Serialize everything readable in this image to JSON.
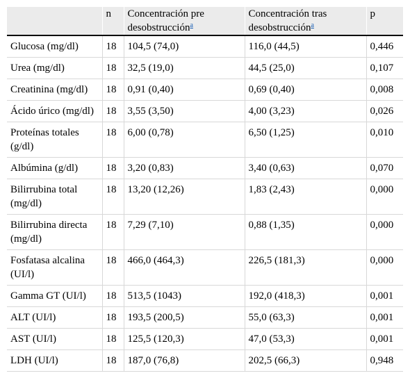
{
  "table": {
    "headers": {
      "param": "",
      "n": "n",
      "pre": "Concentración pre desobstrucción",
      "post": "Concentración tras desobstrucción",
      "footnote_mark": "a",
      "p": "p"
    },
    "rows": [
      {
        "param": "Glucosa (mg/dl)",
        "n": "18",
        "pre": "104,5 (74,0)",
        "post": "116,0 (44,5)",
        "p": "0,446"
      },
      {
        "param": "Urea (mg/dl)",
        "n": "18",
        "pre": "32,5 (19,0)",
        "post": "44,5 (25,0)",
        "p": "0,107"
      },
      {
        "param": "Creatinina (mg/dl)",
        "n": "18",
        "pre": "0,91 (0,40)",
        "post": "0,69 (0,40)",
        "p": "0,008"
      },
      {
        "param": "Ácido úrico (mg/dl)",
        "n": "18",
        "pre": "3,55 (3,50)",
        "post": "4,00 (3,23)",
        "p": "0,026"
      },
      {
        "param": "Proteínas totales (g/dl)",
        "n": "18",
        "pre": "6,00 (0,78)",
        "post": "6,50 (1,25)",
        "p": "0,010"
      },
      {
        "param": "Albúmina (g/dl)",
        "n": "18",
        "pre": "3,20 (0,83)",
        "post": "3,40 (0,63)",
        "p": "0,070"
      },
      {
        "param": "Bilirrubina total (mg/dl)",
        "n": "18",
        "pre": "13,20 (12,26)",
        "post": "1,83 (2,43)",
        "p": "0,000"
      },
      {
        "param": "Bilirrubina directa (mg/dl)",
        "n": "18",
        "pre": "7,29 (7,10)",
        "post": "0,88 (1,35)",
        "p": "0,000"
      },
      {
        "param": "Fosfatasa alcalina (UI/l)",
        "n": "18",
        "pre": "466,0 (464,3)",
        "post": "226,5 (181,3)",
        "p": "0,000"
      },
      {
        "param": "Gamma GT (UI/l)",
        "n": "18",
        "pre": "513,5 (1043)",
        "post": "192,0 (418,3)",
        "p": "0,001"
      },
      {
        "param": "ALT (UI/l)",
        "n": "18",
        "pre": "193,5 (200,5)",
        "post": "55,0 (63,3)",
        "p": "0,001"
      },
      {
        "param": "AST (UI/l)",
        "n": "18",
        "pre": "125,5 (120,3)",
        "post": "47,0 (53,3)",
        "p": "0,001"
      },
      {
        "param": "LDH (UI/l)",
        "n": "18",
        "pre": "187,0 (76,8)",
        "post": "202,5 (66,3)",
        "p": "0,948"
      }
    ]
  }
}
